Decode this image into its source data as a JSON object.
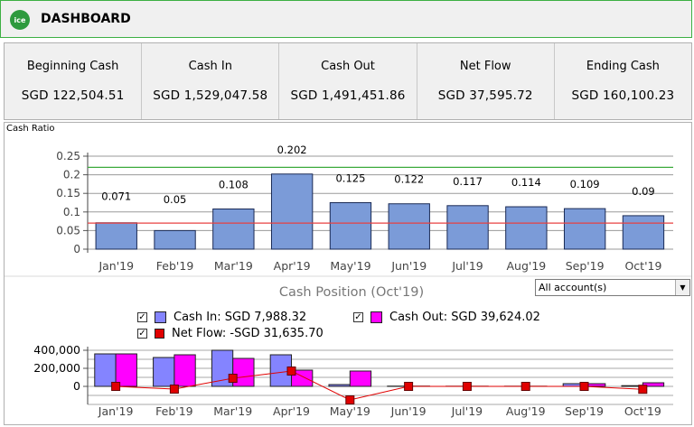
{
  "header": {
    "logo_text": "ice",
    "title": "DASHBOARD"
  },
  "summary": [
    {
      "label": "Beginning Cash",
      "value": "SGD 122,504.51"
    },
    {
      "label": "Cash In",
      "value": "SGD 1,529,047.58"
    },
    {
      "label": "Cash Out",
      "value": "SGD 1,491,451.86"
    },
    {
      "label": "Net Flow",
      "value": "SGD 37,595.72"
    },
    {
      "label": "Ending Cash",
      "value": "SGD 160,100.23"
    }
  ],
  "cash_ratio_label": "Cash Ratio",
  "cash_position_title": "Cash Position (Oct'19)",
  "account_select": {
    "value": "All account(s)"
  },
  "legend": {
    "cash_in": "Cash In: SGD 7,988.32",
    "cash_out": "Cash Out: SGD 39,624.02",
    "net_flow": "Net Flow: -SGD 31,635.70"
  },
  "colors": {
    "bar": "#7b9bd8",
    "cash_in": "#8484ff",
    "cash_out": "#ff00ff",
    "net_flow": "#e00000",
    "green_line": "#3caa3c",
    "red_line": "#e84040"
  },
  "chart_data": [
    {
      "type": "bar",
      "categories": [
        "Jan'19",
        "Feb'19",
        "Mar'19",
        "Apr'19",
        "May'19",
        "Jun'19",
        "Jul'19",
        "Aug'19",
        "Sep'19",
        "Oct'19"
      ],
      "values": [
        0.071,
        0.05,
        0.108,
        0.202,
        0.125,
        0.122,
        0.117,
        0.114,
        0.109,
        0.09
      ],
      "data_labels": [
        "0.071",
        "0.05",
        "0.108",
        "0.202",
        "0.125",
        "0.122",
        "0.117",
        "0.114",
        "0.109",
        "0.09"
      ],
      "yticks": [
        "0",
        "0.05",
        "0.1",
        "0.15",
        "0.2",
        "0.25"
      ],
      "ylim": [
        0,
        0.25
      ],
      "reference_lines": [
        0.22,
        0.07
      ],
      "grid": true
    },
    {
      "type": "bar",
      "categories": [
        "Jan'19",
        "Feb'19",
        "Mar'19",
        "Apr'19",
        "May'19",
        "Jun'19",
        "Jul'19",
        "Aug'19",
        "Sep'19",
        "Oct'19"
      ],
      "series": [
        {
          "values": [
            360000,
            320000,
            400000,
            350000,
            20000,
            3000,
            2000,
            2000,
            30000,
            8000
          ]
        },
        {
          "values": [
            360000,
            350000,
            310000,
            180000,
            170000,
            3000,
            2000,
            2000,
            30000,
            40000
          ]
        },
        {
          "values": [
            0,
            -30000,
            90000,
            170000,
            -150000,
            0,
            0,
            0,
            0,
            -32000
          ]
        }
      ],
      "yticks": [
        "0",
        "200,000",
        "400,000"
      ],
      "ylim": [
        -200000,
        400000
      ],
      "grid": true
    }
  ]
}
